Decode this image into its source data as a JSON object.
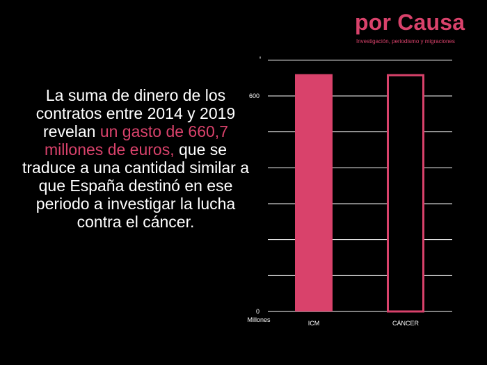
{
  "brand": {
    "name": "por Causa",
    "tagline": "Investigación, periodismo y migraciones"
  },
  "headline": {
    "part1": "La suma de dinero de los contratos entre 2014 y 2019 revelan ",
    "highlight": "un gasto de 660,7 millones de euros,",
    "part2": " que se traduce a una cantidad similar a que España destinó en ese periodo a investigar la lucha contra el cáncer."
  },
  "colors": {
    "accent": "#d9426b",
    "background": "#000000",
    "text": "#ffffff"
  },
  "chart_data": {
    "type": "bar",
    "categories": [
      "ICM",
      "CÁNCER"
    ],
    "values": [
      660.7,
      660.7
    ],
    "series_styles": [
      "filled",
      "outline"
    ],
    "ylabel": "Millones",
    "ylim": [
      0,
      700
    ],
    "y_ticks": [
      0,
      600
    ],
    "y_tick_labels": [
      "0",
      "600"
    ],
    "gridline_count": 7,
    "grid": true,
    "legend": "none"
  }
}
